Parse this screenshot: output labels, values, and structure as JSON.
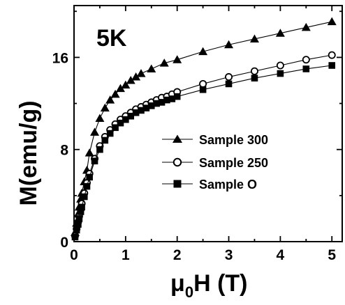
{
  "chart_data": {
    "type": "scatter",
    "title": "",
    "annotation": "5K",
    "xlabel": {
      "main": "μ",
      "sub": "0",
      "rest": "H (T)"
    },
    "ylabel": "M(emu/g)",
    "xlim": [
      0,
      5.2
    ],
    "ylim": [
      0,
      20.5
    ],
    "xticks": [
      0,
      1,
      2,
      3,
      4,
      5
    ],
    "xtick_labels": [
      "0",
      "1",
      "2",
      "3",
      "4",
      "5"
    ],
    "yticks": [
      0,
      8,
      16
    ],
    "ytick_labels": [
      "0",
      "8",
      "16"
    ],
    "grid": false,
    "legend_position": "center-right",
    "series": [
      {
        "name": "Sample 300",
        "marker": "triangle",
        "x": [
          0.02,
          0.05,
          0.08,
          0.1,
          0.13,
          0.15,
          0.2,
          0.25,
          0.3,
          0.4,
          0.5,
          0.6,
          0.7,
          0.8,
          0.9,
          1.0,
          1.1,
          1.2,
          1.3,
          1.5,
          1.75,
          2.0,
          2.5,
          3.0,
          3.5,
          4.0,
          4.5,
          5.0
        ],
        "y": [
          0.8,
          1.6,
          2.4,
          3.0,
          3.7,
          4.2,
          5.2,
          6.2,
          7.7,
          9.5,
          10.7,
          11.6,
          12.3,
          12.8,
          13.3,
          13.6,
          14.0,
          14.3,
          14.6,
          15.0,
          15.5,
          15.8,
          16.5,
          17.1,
          17.6,
          18.1,
          18.6,
          19.1
        ]
      },
      {
        "name": "Sample 250",
        "marker": "open-circle",
        "x": [
          0.02,
          0.05,
          0.08,
          0.1,
          0.13,
          0.15,
          0.2,
          0.25,
          0.3,
          0.4,
          0.5,
          0.6,
          0.7,
          0.8,
          0.9,
          1.0,
          1.1,
          1.2,
          1.3,
          1.4,
          1.5,
          1.6,
          1.7,
          1.8,
          1.9,
          2.0,
          2.5,
          3.0,
          3.5,
          4.0,
          4.5,
          5.0
        ],
        "y": [
          0.5,
          1.1,
          1.7,
          2.2,
          2.8,
          3.3,
          4.2,
          5.1,
          5.9,
          7.2,
          8.3,
          9.1,
          9.7,
          10.2,
          10.6,
          10.9,
          11.2,
          11.5,
          11.7,
          11.9,
          12.1,
          12.3,
          12.5,
          12.6,
          12.8,
          13.0,
          13.7,
          14.3,
          14.8,
          15.3,
          15.8,
          16.2
        ]
      },
      {
        "name": "Sample O",
        "marker": "filled-square",
        "x": [
          0.02,
          0.05,
          0.08,
          0.1,
          0.13,
          0.15,
          0.2,
          0.25,
          0.3,
          0.4,
          0.5,
          0.6,
          0.7,
          0.8,
          0.9,
          1.0,
          1.1,
          1.2,
          1.3,
          1.4,
          1.5,
          1.6,
          1.7,
          1.8,
          1.9,
          2.0,
          2.5,
          3.0,
          3.5,
          4.0,
          4.5,
          5.0
        ],
        "y": [
          0.4,
          1.0,
          1.5,
          2.0,
          2.6,
          3.0,
          3.9,
          4.8,
          5.6,
          7.0,
          8.0,
          8.8,
          9.4,
          9.9,
          10.3,
          10.6,
          10.9,
          11.2,
          11.4,
          11.6,
          11.8,
          12.0,
          12.1,
          12.3,
          12.4,
          12.6,
          13.2,
          13.7,
          14.2,
          14.6,
          15.0,
          15.3
        ]
      }
    ]
  }
}
